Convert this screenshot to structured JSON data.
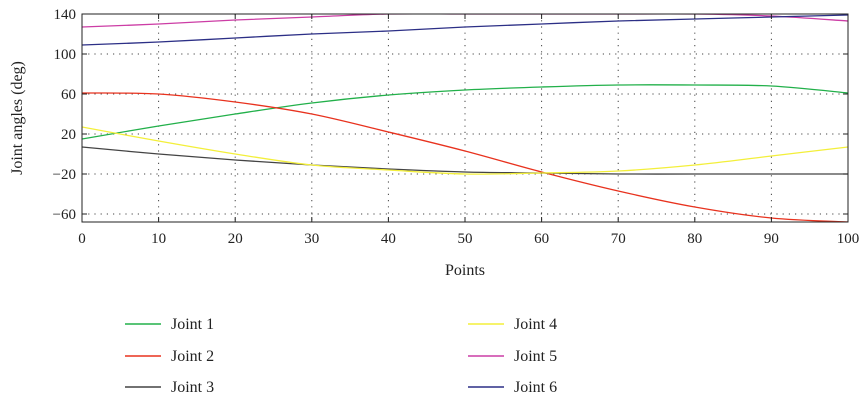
{
  "chart_data": {
    "type": "line",
    "title": "",
    "xlabel": "Points",
    "ylabel": "Joint angles (deg)",
    "xlim": [
      0,
      100
    ],
    "ylim": [
      -68,
      140
    ],
    "xticks": [
      0,
      10,
      20,
      30,
      40,
      50,
      60,
      70,
      80,
      90,
      100
    ],
    "yticks": [
      -60,
      -20,
      20,
      60,
      100,
      140
    ],
    "xtick_labels": [
      "0",
      "10",
      "20",
      "30",
      "40",
      "50",
      "60",
      "70",
      "80",
      "90",
      "100"
    ],
    "ytick_labels": [
      "−60",
      "−20",
      "20",
      "60",
      "100",
      "140"
    ],
    "grid": true,
    "legend_position": "below",
    "x": [
      0,
      10,
      20,
      30,
      40,
      50,
      60,
      70,
      80,
      90,
      100
    ],
    "series": [
      {
        "name": "Joint 1",
        "color": "#22b04a",
        "values": [
          15,
          28,
          40,
          51,
          59,
          64,
          67,
          69,
          69,
          68,
          61
        ]
      },
      {
        "name": "Joint 2",
        "color": "#e8321e",
        "values": [
          61,
          60,
          52,
          40,
          22,
          3,
          -18,
          -37,
          -53,
          -64,
          -68
        ]
      },
      {
        "name": "Joint 3",
        "color": "#444444",
        "values": [
          7,
          0,
          -6,
          -11,
          -15,
          -18,
          -19,
          -20,
          -20,
          -20,
          -20
        ]
      },
      {
        "name": "Joint 4",
        "color": "#f3ef3a",
        "values": [
          27,
          13,
          0,
          -11,
          -16,
          -20,
          -19,
          -17,
          -11,
          -2,
          7
        ]
      },
      {
        "name": "Joint 5",
        "color": "#cc3da5",
        "values": [
          127,
          130,
          134,
          137,
          140,
          140,
          140,
          140,
          140,
          138,
          133
        ]
      },
      {
        "name": "Joint 6",
        "color": "#2c2f86",
        "values": [
          109,
          112,
          116,
          120,
          123,
          127,
          130,
          133,
          135,
          137,
          139
        ]
      }
    ]
  }
}
